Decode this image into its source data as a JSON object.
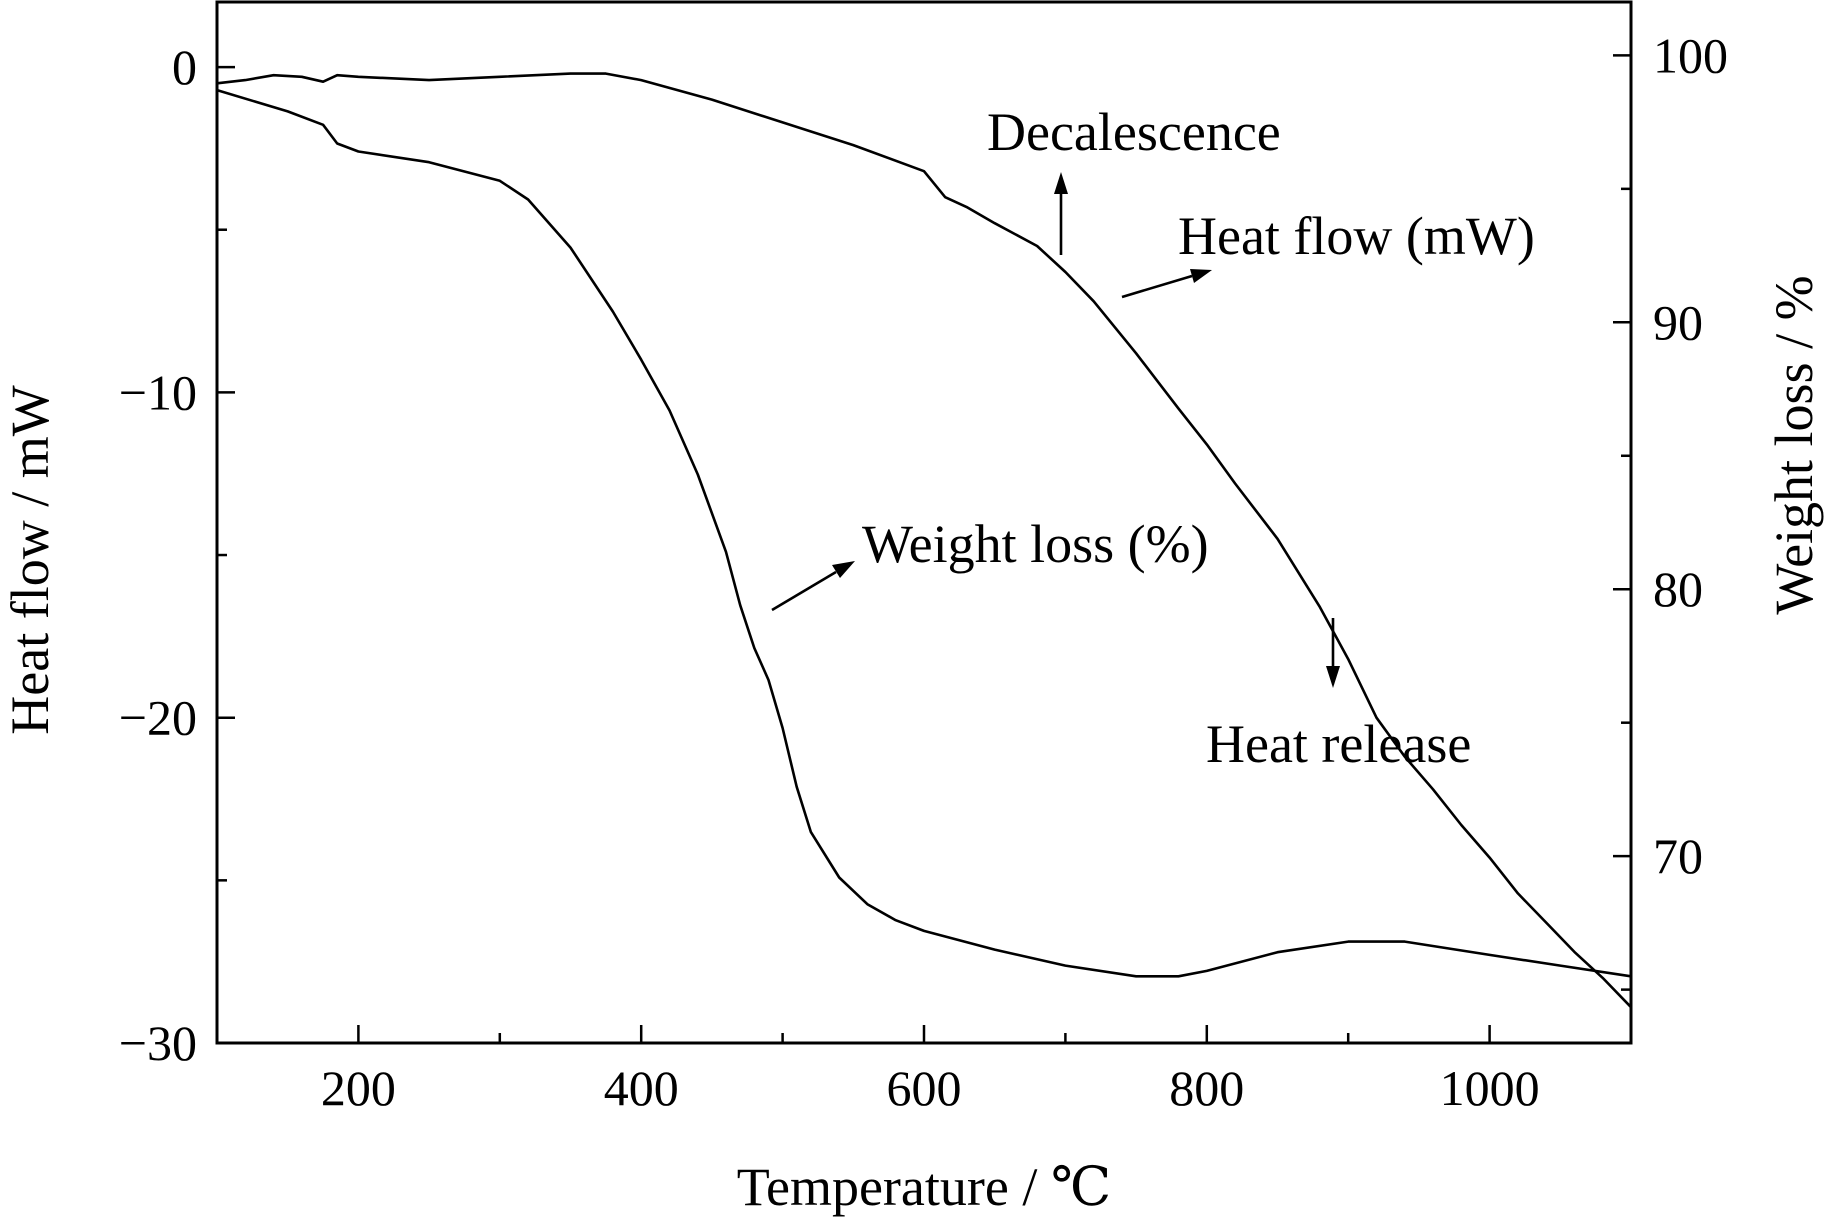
{
  "chart_data": {
    "type": "line",
    "xlabel": "Temperature / ℃",
    "ylabel_left": "Heat flow / mW",
    "ylabel_right": "Weight loss / %",
    "xlim": [
      100,
      1100
    ],
    "ylim_left": [
      -30,
      2
    ],
    "ylim_right": [
      63,
      102
    ],
    "x_ticks": [
      200,
      400,
      600,
      800,
      1000
    ],
    "x_minor_ticks": [
      300,
      500,
      700,
      900
    ],
    "y_left_ticks": [
      0,
      -10,
      -20,
      -30
    ],
    "y_left_tick_labels": [
      "0",
      "−10",
      "−20",
      "−30"
    ],
    "y_left_minor_ticks": [
      -5,
      -15,
      -25
    ],
    "y_right_ticks": [
      100,
      90,
      80,
      70
    ],
    "y_right_minor_ticks": [
      95,
      85,
      75,
      65
    ],
    "series": [
      {
        "axis": "left",
        "x": [
          100,
          120,
          140,
          160,
          175,
          185,
          200,
          250,
          300,
          350,
          375,
          400,
          450,
          500,
          550,
          600,
          615,
          630,
          650,
          680,
          700,
          720,
          750,
          780,
          800,
          820,
          850,
          880,
          900,
          920,
          940,
          960,
          980,
          1000,
          1020,
          1040,
          1060,
          1080,
          1100
        ],
        "y": [
          -0.5,
          -0.4,
          -0.25,
          -0.3,
          -0.45,
          -0.25,
          -0.3,
          -0.4,
          -0.3,
          -0.2,
          -0.2,
          -0.4,
          -1.0,
          -1.7,
          -2.4,
          -3.2,
          -4.0,
          -4.3,
          -4.8,
          -5.5,
          -6.3,
          -7.2,
          -8.8,
          -10.5,
          -11.6,
          -12.8,
          -14.5,
          -16.6,
          -18.2,
          -20.0,
          -21.2,
          -22.2,
          -23.3,
          -24.3,
          -25.4,
          -26.3,
          -27.2,
          -28.0,
          -28.9
        ]
      },
      {
        "axis": "right",
        "x": [
          100,
          150,
          175,
          185,
          200,
          250,
          300,
          320,
          350,
          380,
          400,
          420,
          440,
          460,
          470,
          480,
          490,
          500,
          510,
          520,
          540,
          560,
          580,
          600,
          650,
          700,
          750,
          780,
          800,
          850,
          900,
          940,
          1000,
          1050,
          1100
        ],
        "y": [
          98.7,
          97.9,
          97.4,
          96.7,
          96.4,
          96.0,
          95.3,
          94.6,
          92.8,
          90.4,
          88.6,
          86.7,
          84.3,
          81.4,
          79.4,
          77.8,
          76.6,
          74.8,
          72.6,
          70.9,
          69.2,
          68.2,
          67.6,
          67.2,
          66.5,
          65.9,
          65.5,
          65.5,
          65.7,
          66.4,
          66.8,
          66.8,
          66.3,
          65.9,
          65.5
        ]
      }
    ],
    "annotations": [
      "Decalescence",
      "Heat flow (mW)",
      "Weight loss (%)",
      "Heat release"
    ]
  }
}
